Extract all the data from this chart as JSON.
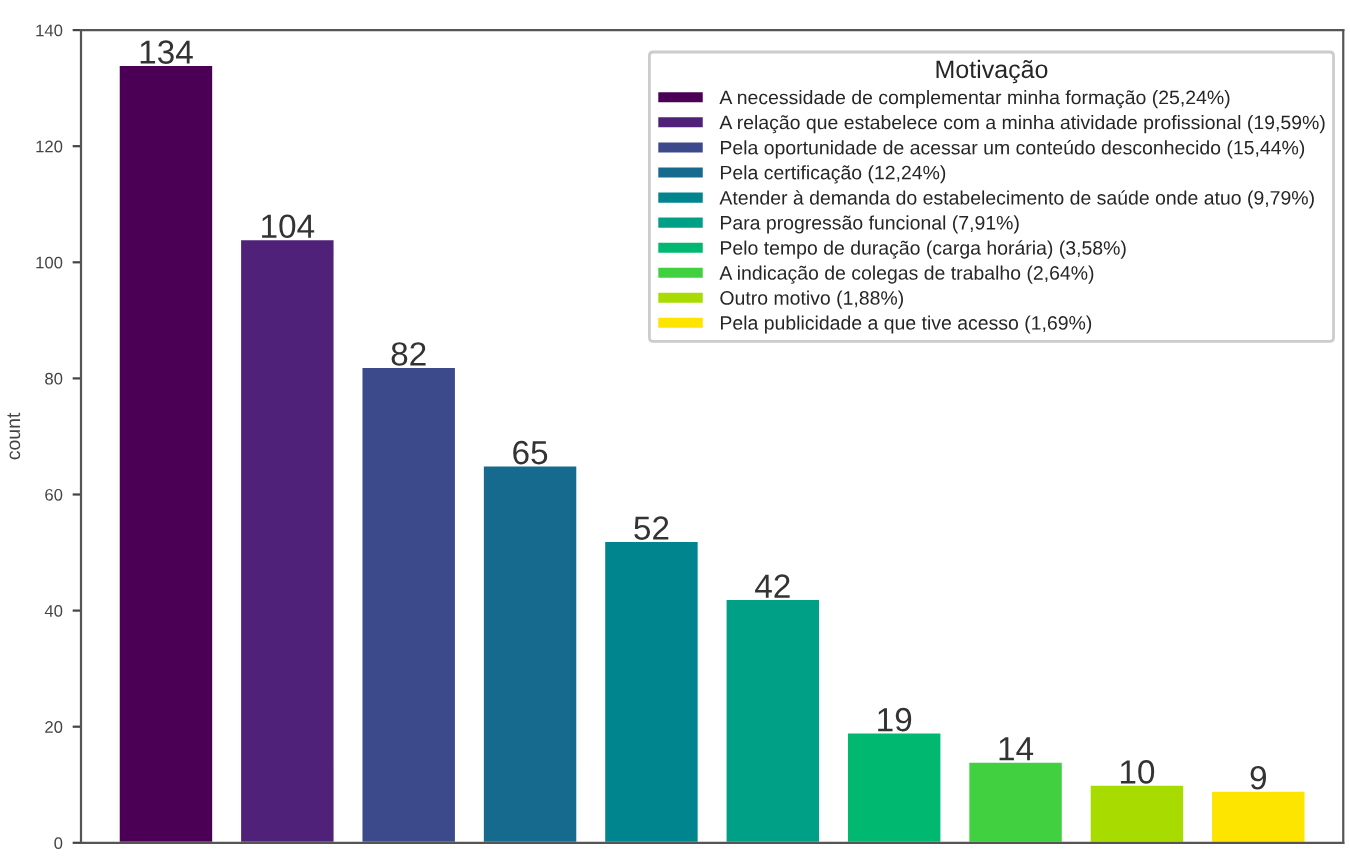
{
  "chart_data": {
    "type": "bar",
    "ylabel": "count",
    "legend_title": "Motivação",
    "categories": [
      null,
      null,
      null,
      null,
      null,
      null,
      null,
      null,
      null,
      null
    ],
    "series": [
      {
        "name": "A necessidade de complementar minha formação (25,24%)",
        "color": "#4b0055",
        "values": [
          134,
          null,
          null,
          null,
          null,
          null,
          null,
          null,
          null,
          null
        ]
      },
      {
        "name": "A relação que estabelece com a minha atividade profissional (19,59%)",
        "color": "#4f2178",
        "values": [
          null,
          104,
          null,
          null,
          null,
          null,
          null,
          null,
          null,
          null
        ]
      },
      {
        "name": "Pela oportunidade de acessar um conteúdo desconhecido (15,44%)",
        "color": "#3c4a8c",
        "values": [
          null,
          null,
          82,
          null,
          null,
          null,
          null,
          null,
          null,
          null
        ]
      },
      {
        "name": "Pela certificação (12,24%)",
        "color": "#156a8e",
        "values": [
          null,
          null,
          null,
          65,
          null,
          null,
          null,
          null,
          null,
          null
        ]
      },
      {
        "name": "Atender à demanda do estabelecimento de saúde onde atuo (9,79%)",
        "color": "#00848e",
        "values": [
          null,
          null,
          null,
          null,
          52,
          null,
          null,
          null,
          null,
          null
        ]
      },
      {
        "name": "Para progressão funcional (7,91%)",
        "color": "#00a087",
        "values": [
          null,
          null,
          null,
          null,
          null,
          42,
          null,
          null,
          null,
          null
        ]
      },
      {
        "name": "Pelo tempo de duração (carga horária) (3,58%)",
        "color": "#00b870",
        "values": [
          null,
          null,
          null,
          null,
          null,
          null,
          19,
          null,
          null,
          null
        ]
      },
      {
        "name": "A indicação de colegas de trabalho (2,64%)",
        "color": "#40d040",
        "values": [
          null,
          null,
          null,
          null,
          null,
          null,
          null,
          14,
          null,
          null
        ]
      },
      {
        "name": "Outro motivo (1,88%)",
        "color": "#a8dc00",
        "values": [
          null,
          null,
          null,
          null,
          null,
          null,
          null,
          null,
          10,
          null
        ]
      },
      {
        "name": "Pela publicidade a que tive acesso (1,69%)",
        "color": "#fde500",
        "values": [
          null,
          null,
          null,
          null,
          null,
          null,
          null,
          null,
          null,
          9
        ]
      }
    ],
    "ylim": [
      0,
      140
    ],
    "yticks": [
      0,
      20,
      40,
      60,
      80,
      100,
      120,
      140
    ],
    "data_labels": true,
    "legend": "top right",
    "tick_labels": "y"
  }
}
